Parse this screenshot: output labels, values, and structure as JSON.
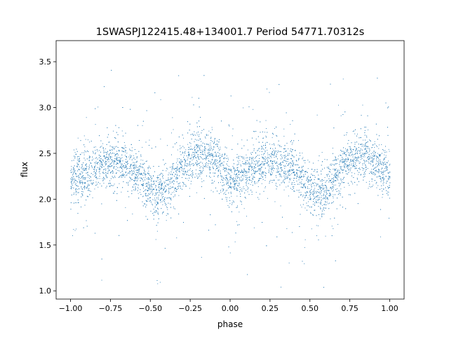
{
  "chart_data": {
    "type": "scatter",
    "title": "1SWASPJ122415.48+134001.7 Period 54771.70312s",
    "xlabel": "phase",
    "ylabel": "flux",
    "xlim": [
      -1.09,
      1.09
    ],
    "ylim": [
      0.91,
      3.73
    ],
    "xticks": [
      "−1.00",
      "−0.75",
      "−0.50",
      "−0.25",
      "0.00",
      "0.25",
      "0.50",
      "0.75",
      "1.00"
    ],
    "xtick_values": [
      -1,
      -0.75,
      -0.5,
      -0.25,
      0,
      0.25,
      0.5,
      0.75,
      1
    ],
    "yticks": [
      "1.0",
      "1.5",
      "2.0",
      "2.5",
      "3.0",
      "3.5"
    ],
    "ytick_values": [
      1,
      1.5,
      2,
      2.5,
      3,
      3.5
    ],
    "grid": false,
    "marker_color": "#1f77b4",
    "series": [
      {
        "phase_range": [
          -1,
          1
        ],
        "mean_curve_phase": [
          0,
          0.1,
          0.2,
          0.3,
          0.4,
          0.5,
          0.55,
          0.6,
          0.7,
          0.8,
          0.9,
          0.95,
          1.0
        ],
        "mean_curve_flux": [
          2.22,
          2.28,
          2.4,
          2.42,
          2.32,
          2.12,
          2.05,
          2.1,
          2.35,
          2.5,
          2.42,
          2.32,
          2.22
        ],
        "scatter_sigma": 0.13
      }
    ]
  }
}
